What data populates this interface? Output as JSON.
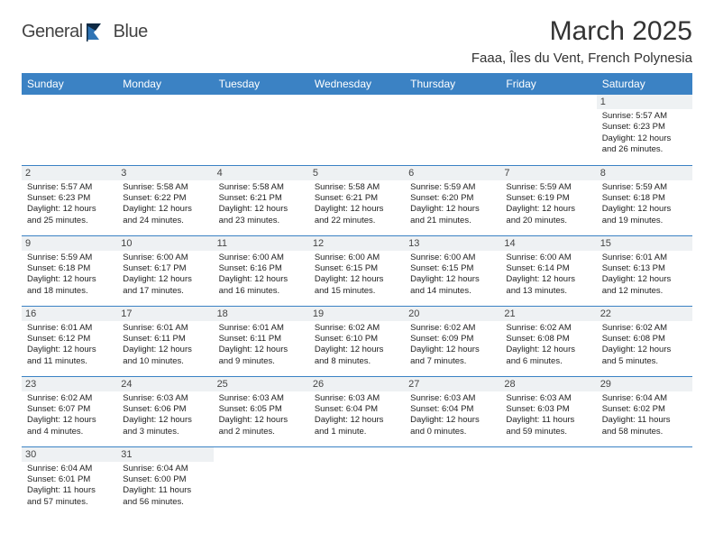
{
  "logo": {
    "word1": "General",
    "word2": "Blue"
  },
  "title": "March 2025",
  "location": "Faaa, Îles du Vent, French Polynesia",
  "theme": {
    "header_bg": "#3b82c4",
    "header_text": "#ffffff",
    "cell_border": "#3b82c4",
    "daynum_bg": "#eef1f3",
    "text_color": "#222222",
    "logo_blue": "#2f74b5"
  },
  "weekdays": [
    "Sunday",
    "Monday",
    "Tuesday",
    "Wednesday",
    "Thursday",
    "Friday",
    "Saturday"
  ],
  "grid": [
    [
      {
        "day": "",
        "lines": []
      },
      {
        "day": "",
        "lines": []
      },
      {
        "day": "",
        "lines": []
      },
      {
        "day": "",
        "lines": []
      },
      {
        "day": "",
        "lines": []
      },
      {
        "day": "",
        "lines": []
      },
      {
        "day": "1",
        "lines": [
          "Sunrise: 5:57 AM",
          "Sunset: 6:23 PM",
          "Daylight: 12 hours and 26 minutes."
        ]
      }
    ],
    [
      {
        "day": "2",
        "lines": [
          "Sunrise: 5:57 AM",
          "Sunset: 6:23 PM",
          "Daylight: 12 hours and 25 minutes."
        ]
      },
      {
        "day": "3",
        "lines": [
          "Sunrise: 5:58 AM",
          "Sunset: 6:22 PM",
          "Daylight: 12 hours and 24 minutes."
        ]
      },
      {
        "day": "4",
        "lines": [
          "Sunrise: 5:58 AM",
          "Sunset: 6:21 PM",
          "Daylight: 12 hours and 23 minutes."
        ]
      },
      {
        "day": "5",
        "lines": [
          "Sunrise: 5:58 AM",
          "Sunset: 6:21 PM",
          "Daylight: 12 hours and 22 minutes."
        ]
      },
      {
        "day": "6",
        "lines": [
          "Sunrise: 5:59 AM",
          "Sunset: 6:20 PM",
          "Daylight: 12 hours and 21 minutes."
        ]
      },
      {
        "day": "7",
        "lines": [
          "Sunrise: 5:59 AM",
          "Sunset: 6:19 PM",
          "Daylight: 12 hours and 20 minutes."
        ]
      },
      {
        "day": "8",
        "lines": [
          "Sunrise: 5:59 AM",
          "Sunset: 6:18 PM",
          "Daylight: 12 hours and 19 minutes."
        ]
      }
    ],
    [
      {
        "day": "9",
        "lines": [
          "Sunrise: 5:59 AM",
          "Sunset: 6:18 PM",
          "Daylight: 12 hours and 18 minutes."
        ]
      },
      {
        "day": "10",
        "lines": [
          "Sunrise: 6:00 AM",
          "Sunset: 6:17 PM",
          "Daylight: 12 hours and 17 minutes."
        ]
      },
      {
        "day": "11",
        "lines": [
          "Sunrise: 6:00 AM",
          "Sunset: 6:16 PM",
          "Daylight: 12 hours and 16 minutes."
        ]
      },
      {
        "day": "12",
        "lines": [
          "Sunrise: 6:00 AM",
          "Sunset: 6:15 PM",
          "Daylight: 12 hours and 15 minutes."
        ]
      },
      {
        "day": "13",
        "lines": [
          "Sunrise: 6:00 AM",
          "Sunset: 6:15 PM",
          "Daylight: 12 hours and 14 minutes."
        ]
      },
      {
        "day": "14",
        "lines": [
          "Sunrise: 6:00 AM",
          "Sunset: 6:14 PM",
          "Daylight: 12 hours and 13 minutes."
        ]
      },
      {
        "day": "15",
        "lines": [
          "Sunrise: 6:01 AM",
          "Sunset: 6:13 PM",
          "Daylight: 12 hours and 12 minutes."
        ]
      }
    ],
    [
      {
        "day": "16",
        "lines": [
          "Sunrise: 6:01 AM",
          "Sunset: 6:12 PM",
          "Daylight: 12 hours and 11 minutes."
        ]
      },
      {
        "day": "17",
        "lines": [
          "Sunrise: 6:01 AM",
          "Sunset: 6:11 PM",
          "Daylight: 12 hours and 10 minutes."
        ]
      },
      {
        "day": "18",
        "lines": [
          "Sunrise: 6:01 AM",
          "Sunset: 6:11 PM",
          "Daylight: 12 hours and 9 minutes."
        ]
      },
      {
        "day": "19",
        "lines": [
          "Sunrise: 6:02 AM",
          "Sunset: 6:10 PM",
          "Daylight: 12 hours and 8 minutes."
        ]
      },
      {
        "day": "20",
        "lines": [
          "Sunrise: 6:02 AM",
          "Sunset: 6:09 PM",
          "Daylight: 12 hours and 7 minutes."
        ]
      },
      {
        "day": "21",
        "lines": [
          "Sunrise: 6:02 AM",
          "Sunset: 6:08 PM",
          "Daylight: 12 hours and 6 minutes."
        ]
      },
      {
        "day": "22",
        "lines": [
          "Sunrise: 6:02 AM",
          "Sunset: 6:08 PM",
          "Daylight: 12 hours and 5 minutes."
        ]
      }
    ],
    [
      {
        "day": "23",
        "lines": [
          "Sunrise: 6:02 AM",
          "Sunset: 6:07 PM",
          "Daylight: 12 hours and 4 minutes."
        ]
      },
      {
        "day": "24",
        "lines": [
          "Sunrise: 6:03 AM",
          "Sunset: 6:06 PM",
          "Daylight: 12 hours and 3 minutes."
        ]
      },
      {
        "day": "25",
        "lines": [
          "Sunrise: 6:03 AM",
          "Sunset: 6:05 PM",
          "Daylight: 12 hours and 2 minutes."
        ]
      },
      {
        "day": "26",
        "lines": [
          "Sunrise: 6:03 AM",
          "Sunset: 6:04 PM",
          "Daylight: 12 hours and 1 minute."
        ]
      },
      {
        "day": "27",
        "lines": [
          "Sunrise: 6:03 AM",
          "Sunset: 6:04 PM",
          "Daylight: 12 hours and 0 minutes."
        ]
      },
      {
        "day": "28",
        "lines": [
          "Sunrise: 6:03 AM",
          "Sunset: 6:03 PM",
          "Daylight: 11 hours and 59 minutes."
        ]
      },
      {
        "day": "29",
        "lines": [
          "Sunrise: 6:04 AM",
          "Sunset: 6:02 PM",
          "Daylight: 11 hours and 58 minutes."
        ]
      }
    ],
    [
      {
        "day": "30",
        "lines": [
          "Sunrise: 6:04 AM",
          "Sunset: 6:01 PM",
          "Daylight: 11 hours and 57 minutes."
        ]
      },
      {
        "day": "31",
        "lines": [
          "Sunrise: 6:04 AM",
          "Sunset: 6:00 PM",
          "Daylight: 11 hours and 56 minutes."
        ]
      },
      {
        "day": "",
        "lines": []
      },
      {
        "day": "",
        "lines": []
      },
      {
        "day": "",
        "lines": []
      },
      {
        "day": "",
        "lines": []
      },
      {
        "day": "",
        "lines": []
      }
    ]
  ]
}
